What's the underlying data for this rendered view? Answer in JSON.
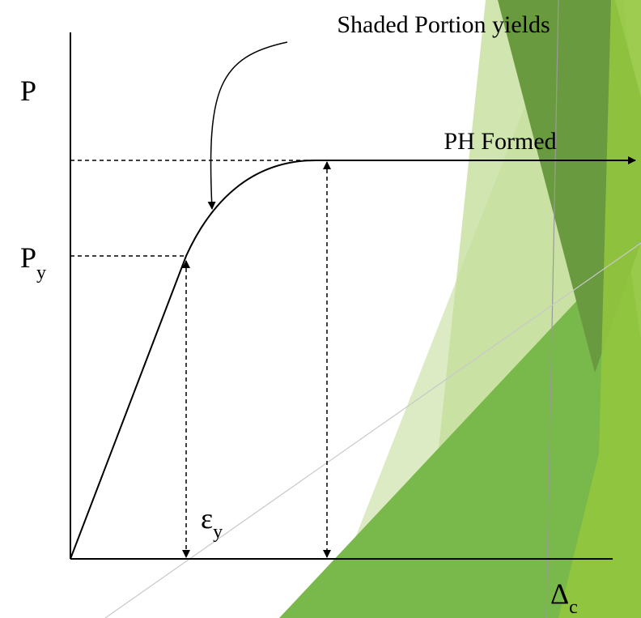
{
  "annotation": "Shaded Portion yields",
  "y_axis_label": "P",
  "yield_load_label": {
    "main": "P",
    "sub": "y"
  },
  "plastic_hinge_label": "PH Formed",
  "yield_strain_label": {
    "main": "ε",
    "sub": "y"
  },
  "x_axis_label": {
    "main": "Δ",
    "sub": "c"
  }
}
